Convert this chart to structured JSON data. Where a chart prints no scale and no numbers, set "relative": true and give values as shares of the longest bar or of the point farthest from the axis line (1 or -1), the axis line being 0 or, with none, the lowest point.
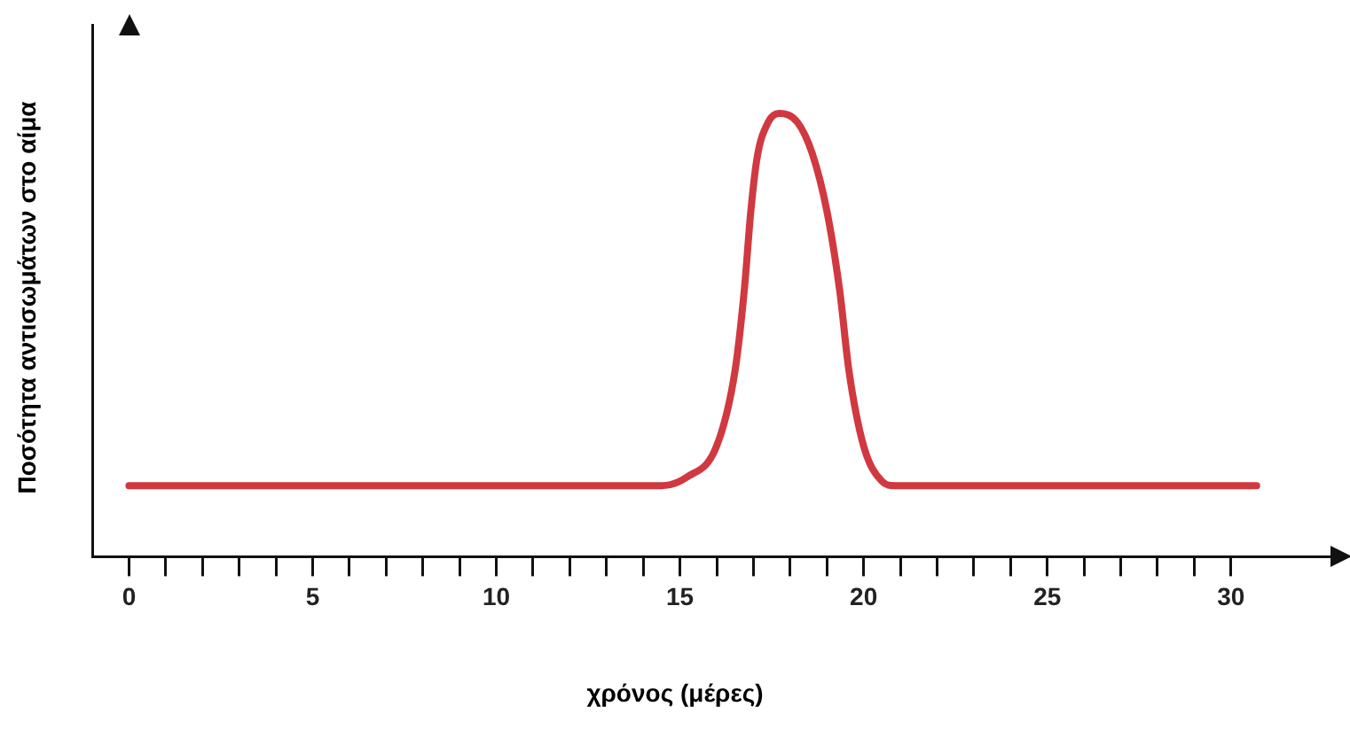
{
  "chart_data": {
    "type": "line",
    "relative": true,
    "xlabel": "χρόνος (μέρες)",
    "ylabel": "Ποσότητα αντισωμάτων στο αίμα",
    "color": "#d0393f",
    "marker": "none",
    "grid": false,
    "legend": false,
    "xlim": [
      -1,
      33
    ],
    "xticks": [
      0,
      {
        "value": 1,
        "label": null
      },
      {
        "value": 2,
        "label": null
      },
      {
        "value": 3,
        "label": null
      },
      {
        "value": 4,
        "label": null
      },
      5,
      {
        "value": 6,
        "label": null
      },
      {
        "value": 7,
        "label": null
      },
      {
        "value": 8,
        "label": null
      },
      {
        "value": 9,
        "label": null
      },
      10,
      {
        "value": 11,
        "label": null
      },
      {
        "value": 12,
        "label": null
      },
      {
        "value": 13,
        "label": null
      },
      {
        "value": 14,
        "label": null
      },
      15,
      {
        "value": 16,
        "label": null
      },
      {
        "value": 17,
        "label": null
      },
      {
        "value": 18,
        "label": null
      },
      {
        "value": 19,
        "label": null
      },
      20,
      {
        "value": 21,
        "label": null
      },
      {
        "value": 22,
        "label": null
      },
      {
        "value": 23,
        "label": null
      },
      {
        "value": 24,
        "label": null
      },
      25,
      {
        "value": 26,
        "label": null
      },
      {
        "value": 27,
        "label": null
      },
      {
        "value": 28,
        "label": null
      },
      {
        "value": 29,
        "label": null
      },
      30
    ],
    "x": [
      0,
      14.5,
      15.2,
      16.0,
      16.5,
      16.75,
      16.93,
      17.1,
      17.4,
      17.7,
      18.2,
      18.6,
      19.0,
      19.35,
      19.6,
      20.0,
      20.5,
      20.85,
      30.7
    ],
    "values": [
      0.16,
      0.16,
      0.18,
      0.25,
      0.42,
      0.6,
      0.78,
      0.9,
      0.98,
      1,
      0.98,
      0.91,
      0.78,
      0.6,
      0.42,
      0.25,
      0.17,
      0.16,
      0.16
    ]
  }
}
